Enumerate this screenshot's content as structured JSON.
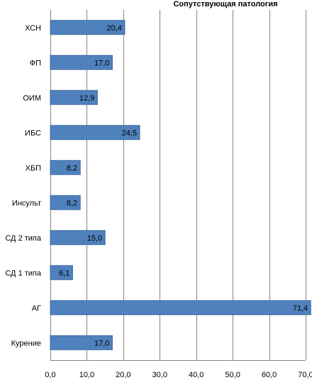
{
  "chart_data": {
    "type": "bar",
    "orientation": "horizontal",
    "title": "Сопутствующая патология",
    "categories": [
      "ХСН",
      "ФП",
      "ОИМ",
      "ИБС",
      "ХБП",
      "Инсульт",
      "СД 2 типа",
      "СД 1 типа",
      "АГ",
      "Курение"
    ],
    "values": [
      20.4,
      17.0,
      12.9,
      24.5,
      8.2,
      8.2,
      15.0,
      6.1,
      71.4,
      17.0
    ],
    "value_labels": [
      "20,4",
      "17,0",
      "12,9",
      "24,5",
      "8,2",
      "8,2",
      "15,0",
      "6,1",
      "71,4",
      "17,0"
    ],
    "xlim": [
      0,
      70
    ],
    "xticks": [
      "0,0",
      "10,0",
      "20,0",
      "30,0",
      "40,0",
      "50,0",
      "60,0",
      "70,0"
    ],
    "grid": true,
    "legend": "none",
    "colors": {
      "bar": "#4f81bd",
      "bar_edge": "#3c6aa3",
      "grid": "#868686",
      "axis": "#868686"
    }
  }
}
